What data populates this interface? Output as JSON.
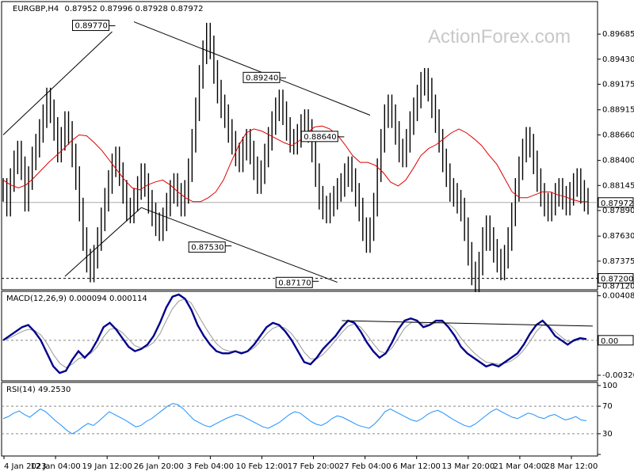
{
  "chart_data": [
    {
      "type": "candlestick",
      "title": "EURGBP,H4",
      "ohlc_header": "0.87952 0.87996 0.87928 0.87972",
      "watermark": "ActionForex.com",
      "ylim": [
        0.871,
        0.9
      ],
      "yticks": [
        "0.89685",
        "0.89430",
        "0.89175",
        "0.88915",
        "0.88660",
        "0.88400",
        "0.88145",
        "0.87890",
        "0.87630",
        "0.87375",
        "0.87120"
      ],
      "last_price": "0.87972",
      "support_label": "0.87200",
      "xticks": [
        "4 Jan 2023",
        "12 Jan 04:00",
        "19 Jan 12:00",
        "26 Jan 20:00",
        "3 Feb 04:00",
        "10 Feb 12:00",
        "17 Feb 20:00",
        "27 Feb 04:00",
        "6 Mar 12:00",
        "13 Mar 20:00",
        "21 Mar 04:00",
        "28 Mar 12:00"
      ],
      "annotations": [
        {
          "text": "0.89770",
          "price": 0.8977
        },
        {
          "text": "0.89240",
          "price": 0.8924
        },
        {
          "text": "0.88640",
          "price": 0.8864
        },
        {
          "text": "0.87530",
          "price": 0.8753
        },
        {
          "text": "0.87170",
          "price": 0.8717
        }
      ],
      "series": [
        {
          "name": "price",
          "values": [
            0.881,
            0.8795,
            0.882,
            0.8838,
            0.8848,
            0.8832,
            0.88,
            0.8822,
            0.8842,
            0.8855,
            0.887,
            0.8885,
            0.8902,
            0.889,
            0.8872,
            0.885,
            0.8862,
            0.8878,
            0.8868,
            0.8845,
            0.8822,
            0.879,
            0.876,
            0.8738,
            0.8728,
            0.8742,
            0.876,
            0.878,
            0.88,
            0.8818,
            0.8835,
            0.8842,
            0.8826,
            0.8808,
            0.879,
            0.8788,
            0.88,
            0.8812,
            0.8825,
            0.8815,
            0.8798,
            0.8785,
            0.8775,
            0.877,
            0.878,
            0.8795,
            0.8808,
            0.8815,
            0.8805,
            0.8795,
            0.8808,
            0.883,
            0.886,
            0.8892,
            0.8925,
            0.895,
            0.8968,
            0.8955,
            0.893,
            0.891,
            0.8895,
            0.8885,
            0.887,
            0.8858,
            0.8846,
            0.884,
            0.8852,
            0.886,
            0.8848,
            0.8832,
            0.8818,
            0.8828,
            0.8845,
            0.8862,
            0.8878,
            0.8892,
            0.89,
            0.8888,
            0.8872,
            0.886,
            0.8858,
            0.8865,
            0.8875,
            0.888,
            0.887,
            0.885,
            0.8825,
            0.8802,
            0.8792,
            0.8788,
            0.8795,
            0.8802,
            0.881,
            0.8815,
            0.8825,
            0.8832,
            0.882,
            0.8805,
            0.879,
            0.877,
            0.8758,
            0.877,
            0.8795,
            0.883,
            0.886,
            0.8885,
            0.8895,
            0.8885,
            0.8868,
            0.885,
            0.8845,
            0.886,
            0.8878,
            0.8892,
            0.8905,
            0.8918,
            0.8922,
            0.8912,
            0.8895,
            0.888,
            0.886,
            0.884,
            0.8825,
            0.881,
            0.8805,
            0.8798,
            0.879,
            0.877,
            0.8745,
            0.8725,
            0.8718,
            0.8735,
            0.876,
            0.8772,
            0.876,
            0.8748,
            0.8738,
            0.873,
            0.8742,
            0.876,
            0.8785,
            0.881,
            0.8832,
            0.885,
            0.8862,
            0.8855,
            0.8838,
            0.882,
            0.8805,
            0.8795,
            0.879,
            0.8796,
            0.8805,
            0.881,
            0.8802,
            0.8796,
            0.8806,
            0.8815,
            0.882,
            0.8808,
            0.88,
            0.8797
          ]
        },
        {
          "name": "ma",
          "values": [
            0.882,
            0.8815,
            0.8812,
            0.8815,
            0.8822,
            0.883,
            0.8838,
            0.8845,
            0.8852,
            0.886,
            0.8866,
            0.8865,
            0.8858,
            0.885,
            0.884,
            0.883,
            0.882,
            0.8812,
            0.881,
            0.8815,
            0.8818,
            0.882,
            0.8815,
            0.8808,
            0.8802,
            0.8798,
            0.8798,
            0.8802,
            0.8808,
            0.882,
            0.8838,
            0.8855,
            0.8868,
            0.8872,
            0.887,
            0.8866,
            0.8862,
            0.8858,
            0.8855,
            0.886,
            0.8868,
            0.8874,
            0.8875,
            0.8872,
            0.8866,
            0.8856,
            0.8845,
            0.8838,
            0.8838,
            0.8835,
            0.8828,
            0.8818,
            0.8814,
            0.882,
            0.8832,
            0.8845,
            0.8852,
            0.8856,
            0.8862,
            0.8868,
            0.8872,
            0.8868,
            0.8862,
            0.8855,
            0.8845,
            0.8836,
            0.8822,
            0.8808,
            0.8802,
            0.8802,
            0.8805,
            0.8808,
            0.8808,
            0.8805,
            0.8803,
            0.88,
            0.8798,
            0.8798
          ]
        }
      ]
    },
    {
      "type": "line",
      "title": "MACD(12,26,9) 0.000094 0.000114",
      "yticks": [
        "0.004083",
        "0.00",
        "-0.003209"
      ],
      "last_label": "0.00",
      "ylim": [
        -0.0035,
        0.0042
      ],
      "series": [
        {
          "name": "macd",
          "values": [
            0.0,
            0.0004,
            0.0008,
            0.0012,
            0.0014,
            0.0008,
            0.0,
            -0.0012,
            -0.0024,
            -0.003,
            -0.0028,
            -0.0018,
            -0.001,
            -0.0016,
            -0.001,
            0.0,
            0.0012,
            0.0016,
            0.001,
            0.0002,
            -0.0006,
            -0.001,
            -0.0008,
            -0.0004,
            0.0004,
            0.0016,
            0.003,
            0.004,
            0.0042,
            0.0038,
            0.0028,
            0.0014,
            0.0004,
            -0.0004,
            -0.001,
            -0.0012,
            -0.0012,
            -0.001,
            -0.0012,
            -0.001,
            -0.0004,
            0.0004,
            0.0012,
            0.0016,
            0.0014,
            0.0008,
            0.0,
            -0.001,
            -0.002,
            -0.0022,
            -0.0016,
            -0.0008,
            -0.0002,
            0.0004,
            0.0012,
            0.0018,
            0.0016,
            0.0008,
            -0.0002,
            -0.001,
            -0.0016,
            -0.0012,
            -0.0002,
            0.001,
            0.0018,
            0.002,
            0.0018,
            0.0012,
            0.0014,
            0.0018,
            0.0018,
            0.0012,
            0.0004,
            -0.0006,
            -0.0012,
            -0.0016,
            -0.002,
            -0.0024,
            -0.0022,
            -0.0024,
            -0.002,
            -0.0016,
            -0.0012,
            -0.0004,
            0.0006,
            0.0014,
            0.0018,
            0.0012,
            0.0004,
            0.0,
            -0.0004,
            0.0,
            0.0002,
            0.0001
          ]
        },
        {
          "name": "signal",
          "values": [
            0.0,
            0.0002,
            0.0005,
            0.0008,
            0.001,
            0.0009,
            0.0005,
            -0.0003,
            -0.0013,
            -0.0021,
            -0.0025,
            -0.0022,
            -0.0017,
            -0.0015,
            -0.0012,
            -0.0006,
            0.0003,
            0.001,
            0.0011,
            0.0007,
            0.0001,
            -0.0005,
            -0.0007,
            -0.0006,
            -0.0002,
            0.0006,
            0.0018,
            0.0029,
            0.0036,
            0.0038,
            0.0034,
            0.0024,
            0.0014,
            0.0005,
            -0.0003,
            -0.0008,
            -0.001,
            -0.001,
            -0.0011,
            -0.001,
            -0.0007,
            -0.0001,
            0.0006,
            0.0011,
            0.0013,
            0.0011,
            0.0006,
            -0.0002,
            -0.0011,
            -0.0017,
            -0.0017,
            -0.0013,
            -0.0007,
            0.0,
            0.0007,
            0.0013,
            0.0015,
            0.0012,
            0.0005,
            -0.0003,
            -0.001,
            -0.0012,
            -0.0007,
            0.0002,
            0.0011,
            0.0016,
            0.0017,
            0.0015,
            0.0014,
            0.0016,
            0.0017,
            0.0015,
            0.001,
            0.0002,
            -0.0005,
            -0.0011,
            -0.0016,
            -0.002,
            -0.0021,
            -0.0022,
            -0.0021,
            -0.0019,
            -0.0015,
            -0.0009,
            -0.0001,
            0.0008,
            0.0014,
            0.0013,
            0.0008,
            0.0003,
            -0.0001,
            -0.0001,
            0.0001,
            0.0001
          ]
        }
      ]
    },
    {
      "type": "line",
      "title": "RSI(14) 49.2530",
      "yticks": [
        "100",
        "70",
        "30",
        "0"
      ],
      "ylim": [
        0,
        100
      ],
      "levels": [
        70,
        30
      ],
      "series": [
        {
          "name": "rsi",
          "values": [
            52,
            55,
            60,
            63,
            58,
            54,
            60,
            66,
            62,
            55,
            48,
            42,
            35,
            30,
            34,
            40,
            45,
            42,
            48,
            55,
            62,
            58,
            54,
            50,
            45,
            40,
            42,
            48,
            52,
            58,
            64,
            70,
            74,
            72,
            66,
            58,
            50,
            46,
            42,
            40,
            44,
            48,
            52,
            55,
            58,
            56,
            52,
            48,
            44,
            40,
            38,
            42,
            46,
            52,
            58,
            62,
            60,
            54,
            48,
            44,
            42,
            46,
            52,
            56,
            54,
            50,
            46,
            42,
            40,
            38,
            44,
            52,
            62,
            66,
            62,
            58,
            54,
            50,
            48,
            52,
            58,
            62,
            64,
            60,
            55,
            50,
            46,
            42,
            40,
            44,
            50,
            56,
            62,
            66,
            62,
            58,
            54,
            52,
            56,
            60,
            58,
            54,
            52,
            56,
            58,
            54,
            50,
            52,
            55,
            50,
            49
          ]
        }
      ]
    }
  ]
}
